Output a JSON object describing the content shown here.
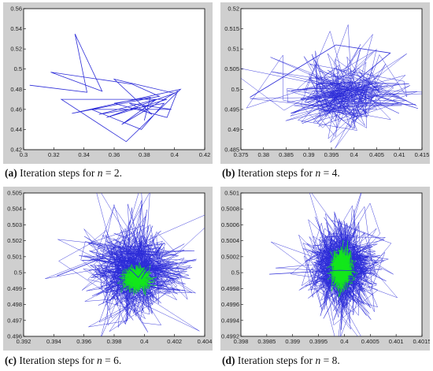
{
  "colors": {
    "frame_bg": "#cfcfcf",
    "plot_bg": "#ffffff",
    "path": "#2b2bd8",
    "path_dense": "#12e81a",
    "axis": "#000000"
  },
  "captions": [
    {
      "letter": "(a)",
      "text": "Iteration steps for ",
      "var": "n",
      "rest": " = 2."
    },
    {
      "letter": "(b)",
      "text": "Iteration steps for ",
      "var": "n",
      "rest": " = 4."
    },
    {
      "letter": "(c)",
      "text": "Iteration steps for ",
      "var": "n",
      "rest": " = 6."
    },
    {
      "letter": "(d)",
      "text": "Iteration steps for ",
      "var": "n",
      "rest": " = 8."
    }
  ],
  "chart_data": [
    {
      "type": "line",
      "title": "",
      "xlabel": "",
      "ylabel": "",
      "xlim": [
        0.3,
        0.42
      ],
      "ylim": [
        0.42,
        0.56
      ],
      "x_ticks": [
        "0.3",
        "0.32",
        "0.34",
        "0.36",
        "0.38",
        "0.4",
        "0.42"
      ],
      "y_ticks": [
        "0.42",
        "0.44",
        "0.46",
        "0.48",
        "0.5",
        "0.52",
        "0.54",
        "0.56"
      ],
      "grid": false,
      "series": [
        {
          "x": [
            0.304,
            0.342,
            0.334,
            0.352,
            0.318,
            0.372,
            0.39,
            0.332,
            0.404,
            0.368,
            0.325,
            0.395,
            0.355,
            0.4,
            0.36,
            0.385,
            0.37,
            0.398,
            0.345,
            0.378,
            0.393,
            0.35,
            0.388,
            0.365,
            0.402,
            0.395,
            0.36,
            0.384,
            0.38
          ],
          "y": [
            0.484,
            0.477,
            0.535,
            0.478,
            0.497,
            0.485,
            0.473,
            0.456,
            0.48,
            0.428,
            0.47,
            0.47,
            0.452,
            0.476,
            0.49,
            0.455,
            0.466,
            0.46,
            0.46,
            0.44,
            0.466,
            0.455,
            0.47,
            0.445,
            0.478,
            0.452,
            0.466,
            0.472,
            0.449
          ]
        }
      ]
    },
    {
      "type": "line",
      "title": "",
      "xlabel": "",
      "ylabel": "",
      "xlim": [
        0.375,
        0.415
      ],
      "ylim": [
        0.485,
        0.52
      ],
      "x_ticks": [
        "0.375",
        "0.38",
        "0.385",
        "0.39",
        "0.395",
        "0.4",
        "0.405",
        "0.41",
        "0.415"
      ],
      "y_ticks": [
        "0.485",
        "0.49",
        "0.495",
        "0.5",
        "0.505",
        "0.51",
        "0.515",
        "0.52"
      ],
      "grid": false,
      "cloud": {
        "center": [
          0.398,
          0.4985
        ],
        "spread": [
          0.0055,
          0.004
        ],
        "n": 320
      },
      "series": [
        {
          "x": [
            0.377,
            0.396,
            0.408,
            0.395,
            0.399,
            0.386,
            0.4
          ],
          "y": [
            0.498,
            0.511,
            0.509,
            0.497,
            0.5,
            0.494,
            0.4985
          ]
        }
      ]
    },
    {
      "type": "line",
      "title": "",
      "xlabel": "",
      "ylabel": "",
      "xlim": [
        0.392,
        0.404
      ],
      "ylim": [
        0.496,
        0.505
      ],
      "x_ticks": [
        "0.392",
        "0.394",
        "0.396",
        "0.398",
        "0.4",
        "0.402",
        "0.404"
      ],
      "y_ticks": [
        "0.496",
        "0.497",
        "0.498",
        "0.499",
        "0.5",
        "0.501",
        "0.502",
        "0.503",
        "0.504",
        "0.505"
      ],
      "grid": false,
      "cloud": {
        "center": [
          0.3993,
          0.5001
        ],
        "spread": [
          0.0014,
          0.0012
        ],
        "n": 700,
        "dense_center": [
          0.3995,
          0.4996
        ],
        "dense_spread": [
          0.00045,
          0.0004
        ],
        "dense_n": 500
      },
      "series": [
        {
          "x": [
            0.3942,
            0.398,
            0.3996,
            0.4012,
            0.3998
          ],
          "y": [
            0.4998,
            0.5012,
            0.4997,
            0.5018,
            0.4996
          ]
        }
      ]
    },
    {
      "type": "line",
      "title": "",
      "xlabel": "",
      "ylabel": "",
      "xlim": [
        0.398,
        0.4015
      ],
      "ylim": [
        0.4992,
        0.501
      ],
      "x_ticks": [
        "0.398",
        "0.3985",
        "0.399",
        "0.3995",
        "0.4",
        "0.4005",
        "0.401",
        "0.4015"
      ],
      "y_ticks": [
        "0.4992",
        "0.4994",
        "0.4996",
        "0.4998",
        "0.5",
        "0.5002",
        "0.5004",
        "0.5006",
        "0.5008",
        "0.501"
      ],
      "grid": false,
      "cloud": {
        "center": [
          0.39995,
          0.50005
        ],
        "spread": [
          0.00028,
          0.00024
        ],
        "n": 900,
        "dense_center": [
          0.39995,
          0.50005
        ],
        "dense_spread": [
          0.0001,
          0.00011
        ],
        "dense_n": 900
      },
      "series": [
        {
          "x": [
            0.39855,
            0.3999,
            0.40045,
            0.40015
          ],
          "y": [
            0.49998,
            0.50003,
            0.50002,
            0.50035
          ]
        }
      ]
    }
  ]
}
